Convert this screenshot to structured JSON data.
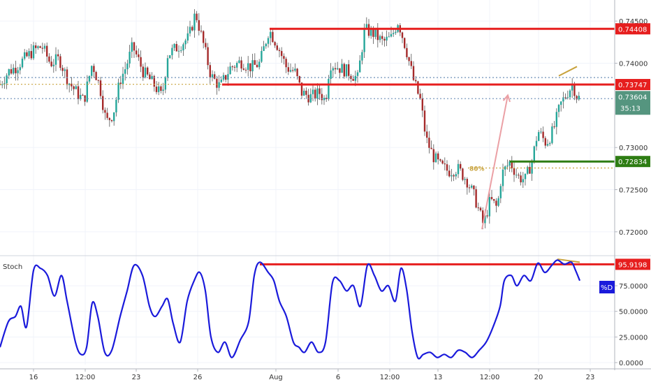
{
  "colors": {
    "up": "#26a69a",
    "down": "#a52a2a",
    "wick": "#555555",
    "resistance": "#e61e1e",
    "support": "#2e7d13",
    "stoch_line": "#1a1adb",
    "fib": "#c8a23c",
    "arrow": "#eba0a5",
    "dotted_blue": "#6d8fb8",
    "current_tag": "#55957f"
  },
  "chart_data": [
    {
      "type": "candlestick",
      "title": "",
      "ylim": [
        0.7175,
        0.7475
      ],
      "y_ticks": [
        0.72,
        0.725,
        0.73,
        0.74,
        0.745
      ],
      "y_tick_labels": [
        "0.72000",
        "0.72500",
        "0.73000",
        "0.74000",
        "0.74500"
      ],
      "x_ticks": [
        {
          "label": "16",
          "i": 48
        },
        {
          "label": "12:00",
          "i": 122
        },
        {
          "label": "23",
          "i": 195
        },
        {
          "label": "26",
          "i": 283
        },
        {
          "label": "Aug",
          "i": 395
        },
        {
          "label": "6",
          "i": 484
        },
        {
          "label": "12:00",
          "i": 558
        },
        {
          "label": "13",
          "i": 627
        },
        {
          "label": "12:00",
          "i": 701
        },
        {
          "label": "20",
          "i": 771
        },
        {
          "label": "23",
          "i": 845
        }
      ],
      "x_range": [
        0,
        880
      ],
      "price_path": [
        [
          0,
          0.7375
        ],
        [
          12,
          0.739
        ],
        [
          22,
          0.7395
        ],
        [
          35,
          0.7405
        ],
        [
          48,
          0.7415
        ],
        [
          60,
          0.742
        ],
        [
          72,
          0.74
        ],
        [
          85,
          0.7405
        ],
        [
          98,
          0.7378
        ],
        [
          110,
          0.7365
        ],
        [
          120,
          0.7355
        ],
        [
          132,
          0.74
        ],
        [
          143,
          0.7372
        ],
        [
          152,
          0.733
        ],
        [
          162,
          0.734
        ],
        [
          172,
          0.738
        ],
        [
          180,
          0.7395
        ],
        [
          190,
          0.742
        ],
        [
          205,
          0.739
        ],
        [
          220,
          0.7375
        ],
        [
          232,
          0.736
        ],
        [
          240,
          0.741
        ],
        [
          255,
          0.742
        ],
        [
          270,
          0.743
        ],
        [
          280,
          0.746
        ],
        [
          292,
          0.742
        ],
        [
          302,
          0.7385
        ],
        [
          315,
          0.7372
        ],
        [
          330,
          0.7395
        ],
        [
          345,
          0.7402
        ],
        [
          360,
          0.7395
        ],
        [
          372,
          0.74
        ],
        [
          385,
          0.744
        ],
        [
          398,
          0.742
        ],
        [
          410,
          0.7395
        ],
        [
          422,
          0.739
        ],
        [
          432,
          0.7365
        ],
        [
          445,
          0.736
        ],
        [
          458,
          0.7365
        ],
        [
          466,
          0.7355
        ],
        [
          472,
          0.74
        ],
        [
          485,
          0.7395
        ],
        [
          498,
          0.739
        ],
        [
          512,
          0.7382
        ],
        [
          522,
          0.744
        ],
        [
          535,
          0.7435
        ],
        [
          548,
          0.7425
        ],
        [
          560,
          0.743
        ],
        [
          570,
          0.745
        ],
        [
          582,
          0.7415
        ],
        [
          592,
          0.738
        ],
        [
          602,
          0.7355
        ],
        [
          610,
          0.731
        ],
        [
          620,
          0.729
        ],
        [
          630,
          0.7278
        ],
        [
          642,
          0.7272
        ],
        [
          655,
          0.7275
        ],
        [
          668,
          0.7262
        ],
        [
          680,
          0.724
        ],
        [
          692,
          0.7208
        ],
        [
          702,
          0.7238
        ],
        [
          712,
          0.7228
        ],
        [
          718,
          0.7268
        ],
        [
          730,
          0.7283
        ],
        [
          742,
          0.7265
        ],
        [
          752,
          0.7262
        ],
        [
          762,
          0.7285
        ],
        [
          770,
          0.732
        ],
        [
          782,
          0.7305
        ],
        [
          792,
          0.732
        ],
        [
          802,
          0.735
        ],
        [
          812,
          0.7365
        ],
        [
          820,
          0.7375
        ],
        [
          826,
          0.736
        ],
        [
          831,
          0.7358
        ]
      ],
      "levels": [
        {
          "name": "resistance-top",
          "value": 0.74408,
          "label": "0.74408",
          "kind": "resistance",
          "x_start": 386
        },
        {
          "name": "resistance-mid",
          "value": 0.73747,
          "label": "0.73747",
          "kind": "resistance",
          "x_start": 318
        },
        {
          "name": "support",
          "value": 0.72834,
          "label": "0.72834",
          "kind": "support",
          "x_start": 730
        }
      ],
      "dotted_levels": [
        {
          "name": "dotted-blue-upper",
          "value": 0.7383,
          "kind": "blue"
        },
        {
          "name": "dotted-blue-lower",
          "value": 0.7358,
          "kind": "blue"
        },
        {
          "name": "dotted-orange",
          "value": 0.7375,
          "kind": "orange"
        }
      ],
      "current_price": {
        "value": 0.73604,
        "label": "0.73604",
        "timer": "35:13"
      },
      "fib": {
        "label": "80%",
        "value": 0.72757,
        "x_start": 670
      },
      "arrow": {
        "from_i": 690,
        "from_v": 0.7203,
        "to_i": 727,
        "to_v": 0.7362
      },
      "divergence_line": {
        "from_i": 800,
        "from_v": 0.7385,
        "to_i": 826,
        "to_v": 0.7396
      }
    },
    {
      "type": "line",
      "title": "Stoch",
      "ylim": [
        0,
        100
      ],
      "y_ticks": [
        0,
        25,
        50,
        75
      ],
      "y_tick_labels": [
        "0.0000",
        "25.0000",
        "50.0000",
        "75.0000"
      ],
      "series_label": "%D",
      "resistance": {
        "value": 95.9198,
        "label": "95.9198",
        "x_start": 372
      },
      "divergence_line": {
        "from_i": 798,
        "from_v": 101,
        "to_i": 830,
        "to_v": 98
      },
      "series": [
        {
          "name": "%D",
          "points": [
            [
              0,
              15
            ],
            [
              12,
              40
            ],
            [
              22,
              45
            ],
            [
              30,
              55
            ],
            [
              38,
              35
            ],
            [
              48,
              90
            ],
            [
              58,
              92
            ],
            [
              68,
              85
            ],
            [
              78,
              65
            ],
            [
              88,
              85
            ],
            [
              96,
              60
            ],
            [
              108,
              20
            ],
            [
              116,
              8
            ],
            [
              124,
              15
            ],
            [
              132,
              58
            ],
            [
              140,
              45
            ],
            [
              150,
              10
            ],
            [
              160,
              12
            ],
            [
              172,
              45
            ],
            [
              182,
              70
            ],
            [
              192,
              95
            ],
            [
              204,
              85
            ],
            [
              214,
              55
            ],
            [
              222,
              45
            ],
            [
              232,
              55
            ],
            [
              240,
              62
            ],
            [
              248,
              38
            ],
            [
              258,
              20
            ],
            [
              268,
              60
            ],
            [
              278,
              80
            ],
            [
              286,
              88
            ],
            [
              294,
              70
            ],
            [
              302,
              25
            ],
            [
              312,
              10
            ],
            [
              322,
              20
            ],
            [
              332,
              5
            ],
            [
              344,
              22
            ],
            [
              356,
              40
            ],
            [
              364,
              85
            ],
            [
              372,
              98
            ],
            [
              384,
              88
            ],
            [
              392,
              80
            ],
            [
              400,
              60
            ],
            [
              410,
              45
            ],
            [
              420,
              20
            ],
            [
              428,
              15
            ],
            [
              436,
              10
            ],
            [
              446,
              20
            ],
            [
              456,
              10
            ],
            [
              466,
              20
            ],
            [
              476,
              78
            ],
            [
              486,
              80
            ],
            [
              496,
              70
            ],
            [
              506,
              75
            ],
            [
              516,
              55
            ],
            [
              526,
              95
            ],
            [
              536,
              85
            ],
            [
              546,
              70
            ],
            [
              556,
              75
            ],
            [
              566,
              60
            ],
            [
              574,
              92
            ],
            [
              582,
              72
            ],
            [
              590,
              30
            ],
            [
              598,
              5
            ],
            [
              606,
              8
            ],
            [
              616,
              10
            ],
            [
              626,
              5
            ],
            [
              636,
              8
            ],
            [
              646,
              5
            ],
            [
              656,
              12
            ],
            [
              666,
              10
            ],
            [
              676,
              5
            ],
            [
              686,
              12
            ],
            [
              696,
              20
            ],
            [
              706,
              35
            ],
            [
              716,
              55
            ],
            [
              722,
              80
            ],
            [
              732,
              85
            ],
            [
              740,
              75
            ],
            [
              750,
              85
            ],
            [
              760,
              80
            ],
            [
              770,
              97
            ],
            [
              780,
              88
            ],
            [
              790,
              95
            ],
            [
              798,
              100
            ],
            [
              808,
              96
            ],
            [
              818,
              98
            ],
            [
              824,
              90
            ],
            [
              830,
              80
            ]
          ]
        }
      ]
    }
  ]
}
